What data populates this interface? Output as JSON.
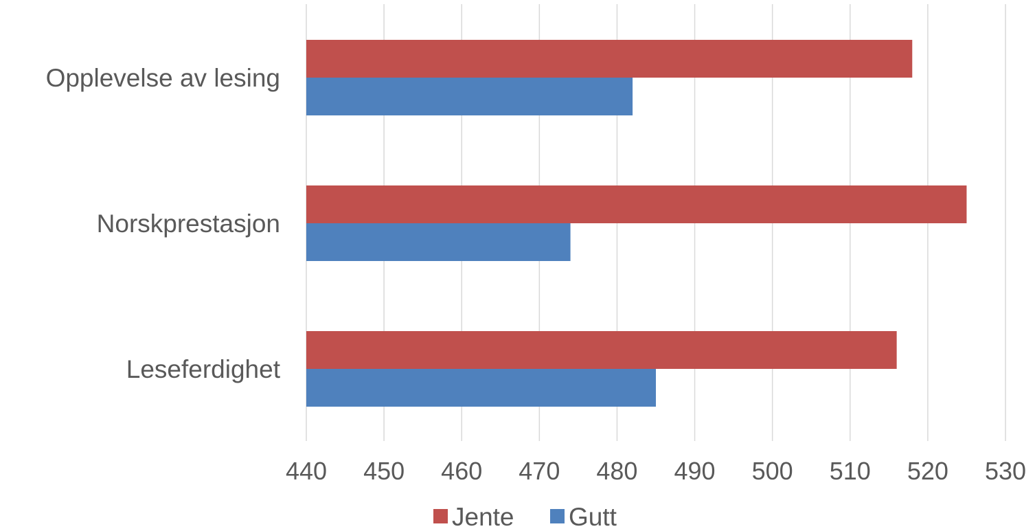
{
  "chart_data": {
    "type": "bar",
    "orientation": "horizontal",
    "categories": [
      "Opplevelse av lesing",
      "Norskprestasjon",
      "Leseferdighet"
    ],
    "series": [
      {
        "name": "Jente",
        "color": "#c0504d",
        "values": [
          518,
          525,
          516
        ]
      },
      {
        "name": "Gutt",
        "color": "#4f81bd",
        "values": [
          482,
          474,
          485
        ]
      }
    ],
    "xlim": [
      440,
      530
    ],
    "xticks": [
      "440",
      "450",
      "460",
      "470",
      "480",
      "490",
      "500",
      "510",
      "520",
      "530"
    ],
    "grid": true,
    "legend_position": "bottom"
  }
}
